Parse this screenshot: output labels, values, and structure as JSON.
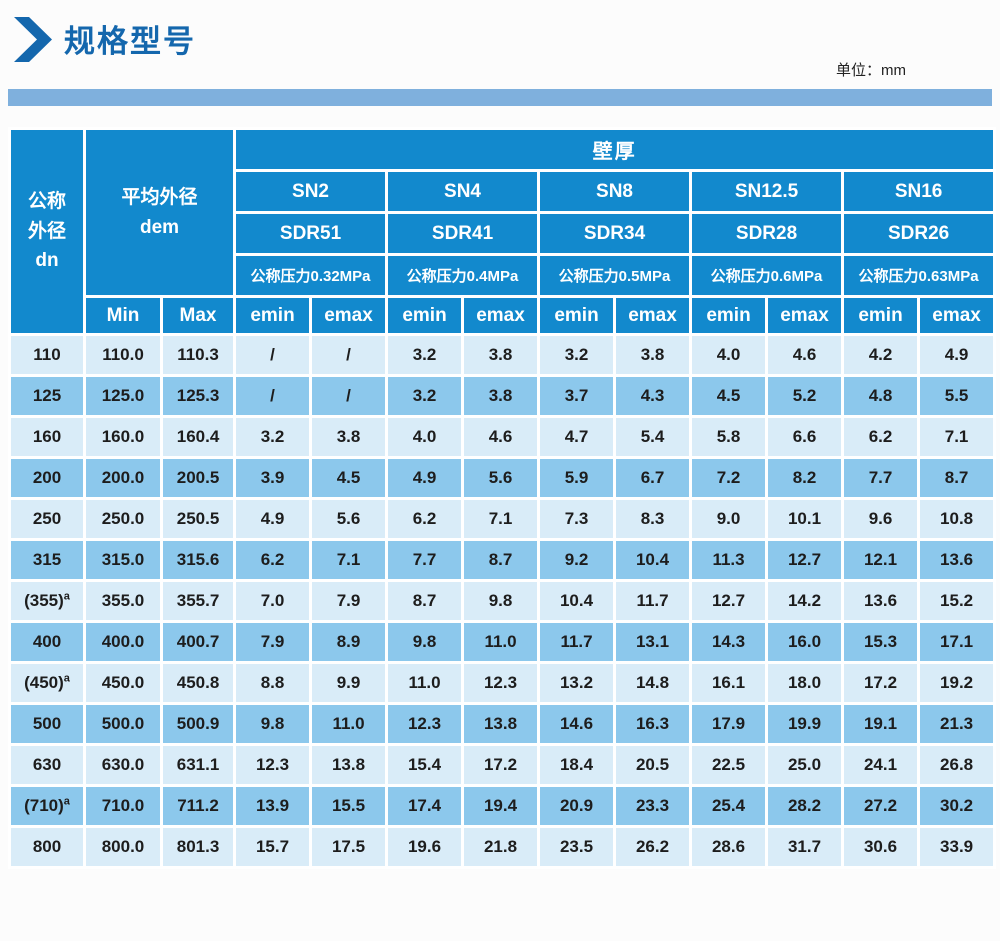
{
  "page": {
    "title": "规格型号",
    "unit_label": "单位：mm"
  },
  "colors": {
    "title_blue": "#1467ad",
    "accent_bar": "#7fb0dd",
    "header_bg": "#1289cd",
    "row_light": "#d9ecf8",
    "row_dark": "#8cc8ec",
    "cell_border": "#ffffff",
    "data_text": "#1d1d1d"
  },
  "table": {
    "header": {
      "dn_lines": [
        "公称",
        "外径",
        "dn"
      ],
      "dem_lines": [
        "平均外径",
        "dem"
      ],
      "wall_thickness": "壁厚",
      "min_label": "Min",
      "max_label": "Max",
      "emin_label": "emin",
      "emax_label": "emax",
      "groups": [
        {
          "sn": "SN2",
          "sdr": "SDR51",
          "pressure": "公称压力0.32MPa"
        },
        {
          "sn": "SN4",
          "sdr": "SDR41",
          "pressure": "公称压力0.4MPa"
        },
        {
          "sn": "SN8",
          "sdr": "SDR34",
          "pressure": "公称压力0.5MPa"
        },
        {
          "sn": "SN12.5",
          "sdr": "SDR28",
          "pressure": "公称压力0.6MPa"
        },
        {
          "sn": "SN16",
          "sdr": "SDR26",
          "pressure": "公称压力0.63MPa"
        }
      ]
    },
    "rows": [
      {
        "dn": "110",
        "dn_sup": "",
        "min": "110.0",
        "max": "110.3",
        "values": [
          "/",
          "/",
          "3.2",
          "3.8",
          "3.2",
          "3.8",
          "4.0",
          "4.6",
          "4.2",
          "4.9"
        ]
      },
      {
        "dn": "125",
        "dn_sup": "",
        "min": "125.0",
        "max": "125.3",
        "values": [
          "/",
          "/",
          "3.2",
          "3.8",
          "3.7",
          "4.3",
          "4.5",
          "5.2",
          "4.8",
          "5.5"
        ]
      },
      {
        "dn": "160",
        "dn_sup": "",
        "min": "160.0",
        "max": "160.4",
        "values": [
          "3.2",
          "3.8",
          "4.0",
          "4.6",
          "4.7",
          "5.4",
          "5.8",
          "6.6",
          "6.2",
          "7.1"
        ]
      },
      {
        "dn": "200",
        "dn_sup": "",
        "min": "200.0",
        "max": "200.5",
        "values": [
          "3.9",
          "4.5",
          "4.9",
          "5.6",
          "5.9",
          "6.7",
          "7.2",
          "8.2",
          "7.7",
          "8.7"
        ]
      },
      {
        "dn": "250",
        "dn_sup": "",
        "min": "250.0",
        "max": "250.5",
        "values": [
          "4.9",
          "5.6",
          "6.2",
          "7.1",
          "7.3",
          "8.3",
          "9.0",
          "10.1",
          "9.6",
          "10.8"
        ]
      },
      {
        "dn": "315",
        "dn_sup": "",
        "min": "315.0",
        "max": "315.6",
        "values": [
          "6.2",
          "7.1",
          "7.7",
          "8.7",
          "9.2",
          "10.4",
          "11.3",
          "12.7",
          "12.1",
          "13.6"
        ]
      },
      {
        "dn": "(355)",
        "dn_sup": "a",
        "min": "355.0",
        "max": "355.7",
        "values": [
          "7.0",
          "7.9",
          "8.7",
          "9.8",
          "10.4",
          "11.7",
          "12.7",
          "14.2",
          "13.6",
          "15.2"
        ]
      },
      {
        "dn": "400",
        "dn_sup": "",
        "min": "400.0",
        "max": "400.7",
        "values": [
          "7.9",
          "8.9",
          "9.8",
          "11.0",
          "11.7",
          "13.1",
          "14.3",
          "16.0",
          "15.3",
          "17.1"
        ]
      },
      {
        "dn": "(450)",
        "dn_sup": "a",
        "min": "450.0",
        "max": "450.8",
        "values": [
          "8.8",
          "9.9",
          "11.0",
          "12.3",
          "13.2",
          "14.8",
          "16.1",
          "18.0",
          "17.2",
          "19.2"
        ]
      },
      {
        "dn": "500",
        "dn_sup": "",
        "min": "500.0",
        "max": "500.9",
        "values": [
          "9.8",
          "11.0",
          "12.3",
          "13.8",
          "14.6",
          "16.3",
          "17.9",
          "19.9",
          "19.1",
          "21.3"
        ]
      },
      {
        "dn": "630",
        "dn_sup": "",
        "min": "630.0",
        "max": "631.1",
        "values": [
          "12.3",
          "13.8",
          "15.4",
          "17.2",
          "18.4",
          "20.5",
          "22.5",
          "25.0",
          "24.1",
          "26.8"
        ]
      },
      {
        "dn": "(710)",
        "dn_sup": "a",
        "min": "710.0",
        "max": "711.2",
        "values": [
          "13.9",
          "15.5",
          "17.4",
          "19.4",
          "20.9",
          "23.3",
          "25.4",
          "28.2",
          "27.2",
          "30.2"
        ]
      },
      {
        "dn": "800",
        "dn_sup": "",
        "min": "800.0",
        "max": "801.3",
        "values": [
          "15.7",
          "17.5",
          "19.6",
          "21.8",
          "23.5",
          "26.2",
          "28.6",
          "31.7",
          "30.6",
          "33.9"
        ]
      }
    ]
  }
}
